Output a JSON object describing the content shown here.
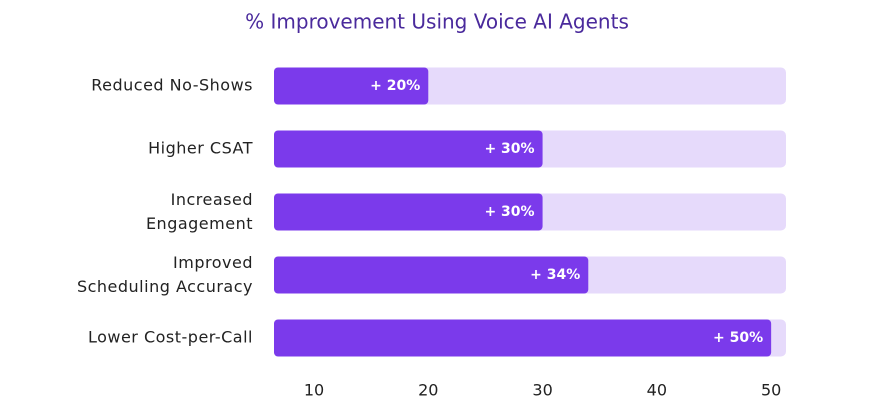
{
  "chart_data": {
    "type": "barh",
    "title": "% Improvement Using Voice AI Agents",
    "categories": [
      "Reduced No-Shows",
      "Higher CSAT",
      "Increased Engagement",
      "Improved Scheduling Accuracy",
      "Lower Cost-per-Call"
    ],
    "values": [
      20,
      30,
      30,
      34,
      50
    ],
    "value_labels": [
      "+ 20%",
      "+ 30%",
      "+ 30%",
      "+ 34%",
      "+ 50%"
    ],
    "color": "#7b3aeb",
    "track_color": "#e6dafb",
    "xlim": [
      6.5,
      51.3
    ],
    "xticks": [
      10,
      20,
      30,
      40,
      50
    ]
  }
}
